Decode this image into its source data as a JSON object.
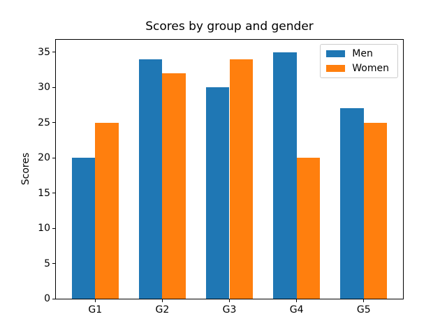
{
  "chart_data": {
    "type": "bar",
    "title": "Scores by group and gender",
    "xlabel": "",
    "ylabel": "Scores",
    "categories": [
      "G1",
      "G2",
      "G3",
      "G4",
      "G5"
    ],
    "series": [
      {
        "name": "Men",
        "color": "#1f77b4",
        "values": [
          20,
          34,
          30,
          35,
          27
        ]
      },
      {
        "name": "Women",
        "color": "#ff7f0e",
        "values": [
          25,
          32,
          34,
          20,
          25
        ]
      }
    ],
    "yticks": [
      0,
      5,
      10,
      15,
      20,
      25,
      30,
      35
    ],
    "ylim": [
      0,
      36.75
    ],
    "bar_width": 0.35,
    "grid": false,
    "legend_position": "upper right",
    "colors": {
      "spine": "#000000",
      "background": "#ffffff",
      "legend_border": "#cccccc"
    }
  }
}
